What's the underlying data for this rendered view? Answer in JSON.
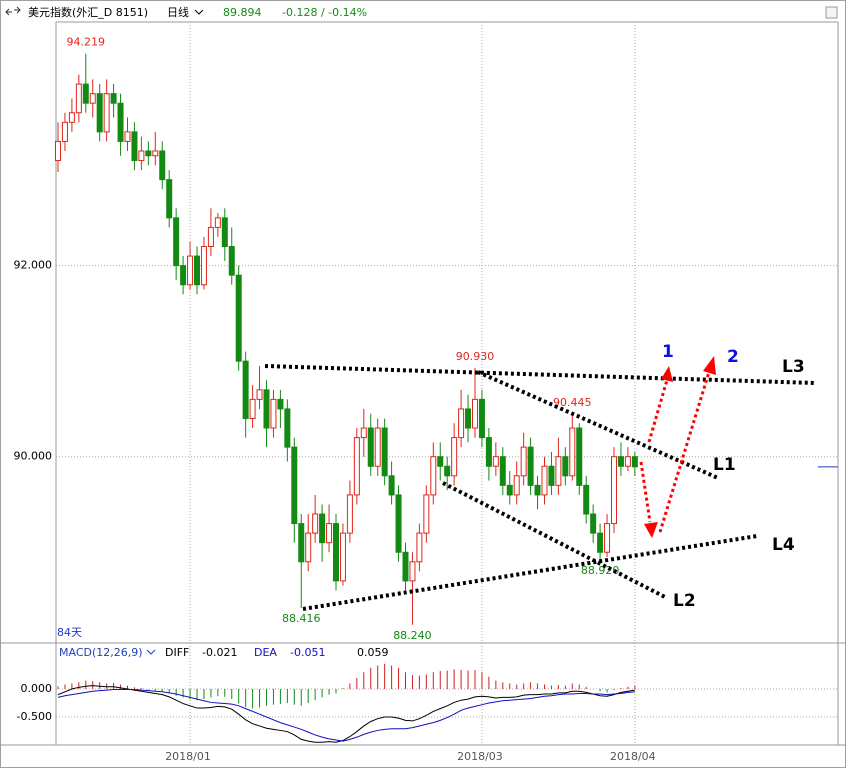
{
  "header": {
    "title": "美元指数(外汇_D 8151)",
    "period": "日线",
    "price": "89.894",
    "change": "-0.128 / -0.14%"
  },
  "chart_data": [
    {
      "type": "candlestick",
      "categories": [
        null,
        null,
        null,
        null,
        null,
        null,
        null,
        null,
        null,
        null,
        null,
        null,
        null,
        null,
        null,
        null,
        null,
        null,
        null,
        "2018/01",
        null,
        null,
        null,
        null,
        null,
        null,
        null,
        null,
        null,
        null,
        null,
        null,
        null,
        null,
        null,
        null,
        null,
        null,
        null,
        null,
        null,
        null,
        null,
        null,
        null,
        null,
        null,
        null,
        null,
        null,
        null,
        null,
        null,
        null,
        null,
        null,
        null,
        null,
        null,
        null,
        null,
        "2018/03",
        null,
        null,
        null,
        null,
        null,
        null,
        null,
        null,
        null,
        null,
        null,
        null,
        null,
        null,
        null,
        null,
        null,
        null,
        null,
        null,
        null,
        "2018/04"
      ],
      "open": [
        93.1,
        93.3,
        93.5,
        93.6,
        93.9,
        93.7,
        93.8,
        93.4,
        93.8,
        93.7,
        93.3,
        93.4,
        93.1,
        93.2,
        93.15,
        93.2,
        92.9,
        92.5,
        92.0,
        91.8,
        92.1,
        91.8,
        92.2,
        92.4,
        92.5,
        92.2,
        91.9,
        91.0,
        90.4,
        90.6,
        90.7,
        90.3,
        90.6,
        90.5,
        90.1,
        89.3,
        88.9,
        89.2,
        89.4,
        89.1,
        89.3,
        88.7,
        89.2,
        89.6,
        90.2,
        90.3,
        89.9,
        90.3,
        89.8,
        89.6,
        89.0,
        88.7,
        88.9,
        89.2,
        89.6,
        90.0,
        89.9,
        89.8,
        90.2,
        90.5,
        90.3,
        90.6,
        90.2,
        89.9,
        90.0,
        89.7,
        89.6,
        89.8,
        90.1,
        89.7,
        89.6,
        89.9,
        89.7,
        90.0,
        89.8,
        90.3,
        89.7,
        89.4,
        89.2,
        89.0,
        89.3,
        90.0,
        89.9,
        90.0
      ],
      "high": [
        93.5,
        93.6,
        93.75,
        94.0,
        94.219,
        93.95,
        93.9,
        93.95,
        93.9,
        93.8,
        93.55,
        93.5,
        93.35,
        93.3,
        93.4,
        93.3,
        93.0,
        92.6,
        92.1,
        92.25,
        92.2,
        92.3,
        92.6,
        92.55,
        92.6,
        92.4,
        92.0,
        91.1,
        90.75,
        90.95,
        90.8,
        90.7,
        90.7,
        90.6,
        90.2,
        89.4,
        89.4,
        89.6,
        89.5,
        89.5,
        89.4,
        89.3,
        89.75,
        90.3,
        90.5,
        90.45,
        90.4,
        90.4,
        89.95,
        89.7,
        89.1,
        89.0,
        89.3,
        89.7,
        90.15,
        90.15,
        90.0,
        90.35,
        90.7,
        90.65,
        90.93,
        90.7,
        90.3,
        90.15,
        90.1,
        89.85,
        89.95,
        90.25,
        90.2,
        89.8,
        90.0,
        90.05,
        90.2,
        90.1,
        90.445,
        90.35,
        89.8,
        89.5,
        89.3,
        89.4,
        90.1,
        90.15,
        90.1,
        90.05
      ],
      "low": [
        92.98,
        93.2,
        93.4,
        93.5,
        93.6,
        93.55,
        93.3,
        93.3,
        93.55,
        93.15,
        93.2,
        93.0,
        93.0,
        93.05,
        93.05,
        92.8,
        92.4,
        91.85,
        91.7,
        91.75,
        91.7,
        91.75,
        92.1,
        92.3,
        92.05,
        91.8,
        90.9,
        90.2,
        90.3,
        90.5,
        90.1,
        90.2,
        90.3,
        89.95,
        89.1,
        88.416,
        88.8,
        89.1,
        88.9,
        89.0,
        88.6,
        88.65,
        89.1,
        89.5,
        90.0,
        89.8,
        89.8,
        89.7,
        89.5,
        88.9,
        88.6,
        88.24,
        88.8,
        89.1,
        89.5,
        89.75,
        89.65,
        89.7,
        90.1,
        90.15,
        90.2,
        90.1,
        89.75,
        89.8,
        89.6,
        89.5,
        89.5,
        89.7,
        89.6,
        89.45,
        89.5,
        89.6,
        89.6,
        89.7,
        89.75,
        89.6,
        89.3,
        89.1,
        88.92,
        88.95,
        89.2,
        89.8,
        89.85,
        89.8
      ],
      "close": [
        93.3,
        93.5,
        93.6,
        93.9,
        93.7,
        93.8,
        93.4,
        93.8,
        93.7,
        93.3,
        93.4,
        93.1,
        93.2,
        93.15,
        93.2,
        92.9,
        92.5,
        92.0,
        91.8,
        92.1,
        91.8,
        92.2,
        92.4,
        92.5,
        92.2,
        91.9,
        91.0,
        90.4,
        90.6,
        90.7,
        90.3,
        90.6,
        90.5,
        90.1,
        89.3,
        88.9,
        89.2,
        89.4,
        89.1,
        89.3,
        88.7,
        89.2,
        89.6,
        90.2,
        90.3,
        89.9,
        90.3,
        89.8,
        89.6,
        89.0,
        88.7,
        88.9,
        89.2,
        89.6,
        90.0,
        89.9,
        89.8,
        90.2,
        90.5,
        90.3,
        90.6,
        90.2,
        89.9,
        90.0,
        89.7,
        89.6,
        89.8,
        90.1,
        89.7,
        89.6,
        89.9,
        89.7,
        90.0,
        89.8,
        90.3,
        89.7,
        89.4,
        89.2,
        89.0,
        89.3,
        90.0,
        89.9,
        90.0,
        89.894
      ],
      "up_color": "#e0261b",
      "down_color": "#138a13",
      "price_marker_color": "#1f3fbf",
      "ylim": [
        88.05,
        94.55
      ],
      "yticks": [
        {
          "value": 90,
          "label": "90.000"
        },
        {
          "value": 92,
          "label": "92.000"
        }
      ],
      "grid": true,
      "annotations": [
        {
          "label": "94.219",
          "value": 94.219,
          "kind": "high"
        },
        {
          "label": "90.930",
          "value": 90.93,
          "kind": "high"
        },
        {
          "label": "90.445",
          "value": 90.445,
          "kind": "high"
        },
        {
          "label": "88.416",
          "value": 88.416,
          "kind": "low"
        },
        {
          "label": "88.240",
          "value": 88.24,
          "kind": "low"
        },
        {
          "label": "88.920",
          "value": 88.92,
          "kind": "low"
        }
      ],
      "period_label": "84天",
      "trend_lines": [
        "L1",
        "L2",
        "L3",
        "L4"
      ],
      "arrows": [
        "1",
        "2"
      ]
    },
    {
      "type": "macd",
      "title": "MACD(12,26,9)",
      "series": [
        {
          "name": "DIFF",
          "color": "#000000",
          "last_label": "-0.021",
          "values": [
            -0.1,
            -0.05,
            0.0,
            0.03,
            0.05,
            0.06,
            0.05,
            0.04,
            0.04,
            0.02,
            0.0,
            -0.02,
            -0.04,
            -0.06,
            -0.08,
            -0.1,
            -0.14,
            -0.2,
            -0.26,
            -0.3,
            -0.34,
            -0.34,
            -0.33,
            -0.31,
            -0.32,
            -0.36,
            -0.45,
            -0.55,
            -0.62,
            -0.66,
            -0.7,
            -0.72,
            -0.74,
            -0.76,
            -0.82,
            -0.9,
            -0.93,
            -0.95,
            -0.95,
            -0.94,
            -0.95,
            -0.92,
            -0.85,
            -0.76,
            -0.66,
            -0.58,
            -0.53,
            -0.5,
            -0.5,
            -0.52,
            -0.56,
            -0.57,
            -0.53,
            -0.47,
            -0.4,
            -0.35,
            -0.3,
            -0.24,
            -0.2,
            -0.18,
            -0.14,
            -0.13,
            -0.14,
            -0.16,
            -0.15,
            -0.15,
            -0.14,
            -0.11,
            -0.1,
            -0.1,
            -0.09,
            -0.09,
            -0.07,
            -0.07,
            -0.04,
            -0.04,
            -0.06,
            -0.09,
            -0.12,
            -0.13,
            -0.1,
            -0.06,
            -0.04,
            -0.021
          ]
        },
        {
          "name": "DEA",
          "color": "#1010c0",
          "last_label": "-0.051",
          "values": [
            -0.15,
            -0.12,
            -0.1,
            -0.08,
            -0.06,
            -0.04,
            -0.03,
            -0.02,
            -0.01,
            -0.01,
            -0.01,
            -0.01,
            -0.02,
            -0.03,
            -0.04,
            -0.05,
            -0.07,
            -0.09,
            -0.12,
            -0.15,
            -0.18,
            -0.21,
            -0.24,
            -0.25,
            -0.26,
            -0.27,
            -0.3,
            -0.35,
            -0.4,
            -0.45,
            -0.5,
            -0.55,
            -0.6,
            -0.64,
            -0.68,
            -0.72,
            -0.77,
            -0.82,
            -0.86,
            -0.89,
            -0.91,
            -0.93,
            -0.9,
            -0.86,
            -0.81,
            -0.77,
            -0.74,
            -0.72,
            -0.71,
            -0.71,
            -0.71,
            -0.69,
            -0.66,
            -0.63,
            -0.6,
            -0.56,
            -0.51,
            -0.45,
            -0.38,
            -0.34,
            -0.31,
            -0.28,
            -0.25,
            -0.23,
            -0.21,
            -0.2,
            -0.19,
            -0.18,
            -0.17,
            -0.15,
            -0.13,
            -0.12,
            -0.1,
            -0.09,
            -0.09,
            -0.08,
            -0.08,
            -0.09,
            -0.09,
            -0.1,
            -0.09,
            -0.08,
            -0.06,
            -0.051
          ]
        }
      ],
      "histogram": {
        "up_color": "#d02020",
        "down_color": "#138a13",
        "last_label": "0.059",
        "values": [
          0.05,
          0.08,
          0.1,
          0.12,
          0.15,
          0.14,
          0.12,
          0.1,
          0.11,
          0.08,
          0.06,
          0.03,
          0.02,
          -0.01,
          -0.03,
          -0.05,
          -0.08,
          -0.12,
          -0.15,
          -0.18,
          -0.2,
          -0.18,
          -0.15,
          -0.13,
          -0.14,
          -0.18,
          -0.26,
          -0.32,
          -0.35,
          -0.33,
          -0.3,
          -0.28,
          -0.27,
          -0.25,
          -0.28,
          -0.3,
          -0.25,
          -0.2,
          -0.15,
          -0.1,
          -0.08,
          0.02,
          0.1,
          0.2,
          0.3,
          0.38,
          0.42,
          0.45,
          0.42,
          0.38,
          0.3,
          0.25,
          0.24,
          0.26,
          0.3,
          0.32,
          0.33,
          0.35,
          0.34,
          0.33,
          0.34,
          0.3,
          0.22,
          0.15,
          0.12,
          0.1,
          0.08,
          0.1,
          0.12,
          0.1,
          0.08,
          0.06,
          0.07,
          0.06,
          0.1,
          0.08,
          0.04,
          0.0,
          -0.04,
          -0.06,
          -0.02,
          0.02,
          0.04,
          0.059
        ]
      },
      "ylim": [
        -1.0,
        0.75
      ],
      "yticks": [
        {
          "value": 0,
          "label": "0.000"
        },
        {
          "value": -0.5,
          "label": "-0.500"
        }
      ],
      "grid": true
    }
  ]
}
